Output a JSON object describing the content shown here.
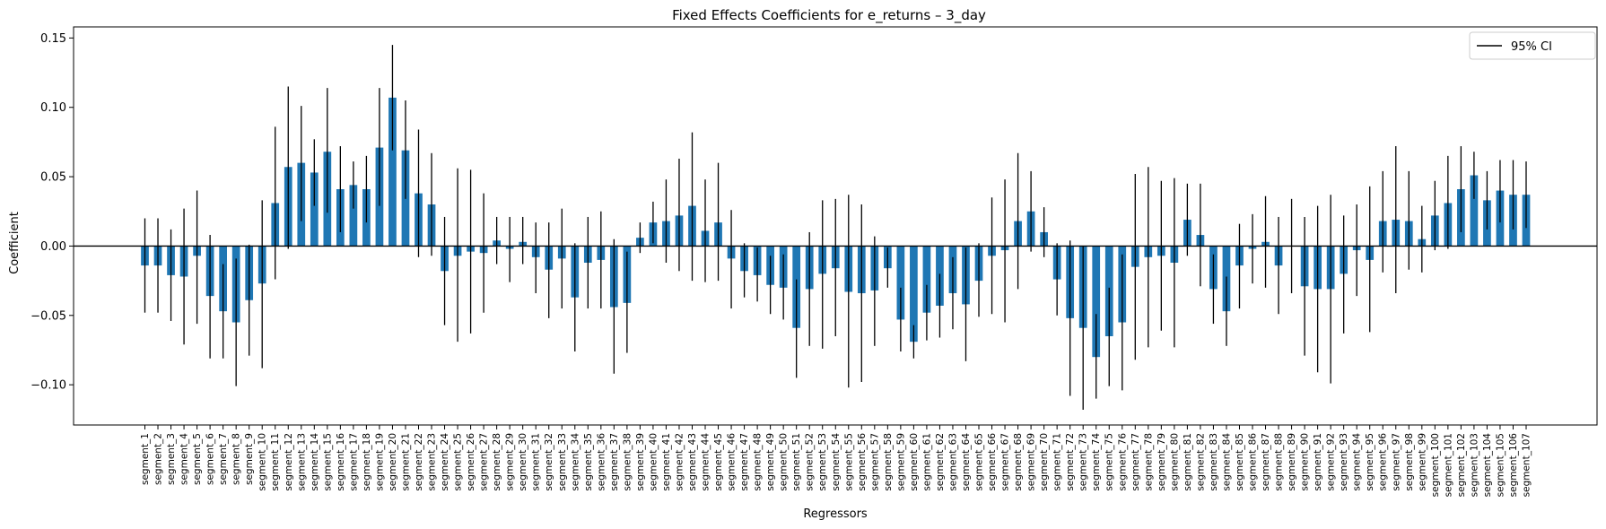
{
  "chart_data": {
    "type": "bar",
    "title": "Fixed Effects Coefficients for e_returns – 3_day",
    "xlabel": "Regressors",
    "ylabel": "Coefficient",
    "ylim": [
      -0.129,
      0.158
    ],
    "yticks": [
      -0.1,
      -0.05,
      0.0,
      0.05,
      0.1,
      0.15
    ],
    "ytick_labels": [
      "−0.10",
      "−0.05",
      "0.00",
      "0.05",
      "0.10",
      "0.15"
    ],
    "legend": {
      "label": "95% CI",
      "placement": "top-right"
    },
    "grid": false,
    "zero_line": true,
    "colors": {
      "bar": "#1f77b4",
      "errorbar": "#000000",
      "zero_line": "#000000"
    },
    "categories": [
      "segment_1",
      "segment_2",
      "segment_3",
      "segment_4",
      "segment_5",
      "segment_6",
      "segment_7",
      "segment_8",
      "segment_9",
      "segment_10",
      "segment_11",
      "segment_12",
      "segment_13",
      "segment_14",
      "segment_15",
      "segment_16",
      "segment_17",
      "segment_18",
      "segment_19",
      "segment_20",
      "segment_21",
      "segment_22",
      "segment_23",
      "segment_24",
      "segment_25",
      "segment_26",
      "segment_27",
      "segment_28",
      "segment_29",
      "segment_30",
      "segment_31",
      "segment_32",
      "segment_33",
      "segment_34",
      "segment_35",
      "segment_36",
      "segment_37",
      "segment_38",
      "segment_39",
      "segment_40",
      "segment_41",
      "segment_42",
      "segment_43",
      "segment_44",
      "segment_45",
      "segment_46",
      "segment_47",
      "segment_48",
      "segment_49",
      "segment_50",
      "segment_51",
      "segment_52",
      "segment_53",
      "segment_54",
      "segment_55",
      "segment_56",
      "segment_57",
      "segment_58",
      "segment_59",
      "segment_60",
      "segment_61",
      "segment_62",
      "segment_63",
      "segment_64",
      "segment_65",
      "segment_66",
      "segment_67",
      "segment_68",
      "segment_69",
      "segment_70",
      "segment_71",
      "segment_72",
      "segment_73",
      "segment_74",
      "segment_75",
      "segment_76",
      "segment_77",
      "segment_78",
      "segment_79",
      "segment_80",
      "segment_81",
      "segment_82",
      "segment_83",
      "segment_84",
      "segment_85",
      "segment_86",
      "segment_87",
      "segment_88",
      "segment_89",
      "segment_90",
      "segment_91",
      "segment_92",
      "segment_93",
      "segment_94",
      "segment_95",
      "segment_96",
      "segment_97",
      "segment_98",
      "segment_99",
      "segment_100",
      "segment_101",
      "segment_102",
      "segment_103",
      "segment_104",
      "segment_105",
      "segment_106",
      "segment_107"
    ],
    "values": [
      -0.014,
      -0.014,
      -0.021,
      -0.022,
      -0.007,
      -0.036,
      -0.047,
      -0.055,
      -0.039,
      -0.027,
      0.031,
      0.057,
      0.06,
      0.053,
      0.068,
      0.041,
      0.044,
      0.041,
      0.071,
      0.107,
      0.069,
      0.038,
      0.03,
      -0.018,
      -0.007,
      -0.004,
      -0.005,
      0.004,
      -0.002,
      0.003,
      -0.008,
      -0.017,
      -0.009,
      -0.037,
      -0.012,
      -0.01,
      -0.044,
      -0.041,
      0.006,
      0.017,
      0.018,
      0.022,
      0.029,
      0.011,
      0.017,
      -0.009,
      -0.018,
      -0.021,
      -0.028,
      -0.03,
      -0.059,
      -0.031,
      -0.02,
      -0.016,
      -0.033,
      -0.034,
      -0.032,
      -0.016,
      -0.053,
      -0.069,
      -0.048,
      -0.043,
      -0.034,
      -0.042,
      -0.025,
      -0.007,
      -0.003,
      0.018,
      0.025,
      0.01,
      -0.024,
      -0.052,
      -0.059,
      -0.08,
      -0.065,
      -0.055,
      -0.015,
      -0.008,
      -0.007,
      -0.012,
      0.019,
      0.008,
      -0.031,
      -0.047,
      -0.014,
      -0.002,
      0.003,
      -0.014,
      0.0,
      -0.029,
      -0.031,
      -0.031,
      -0.02,
      -0.003,
      -0.01,
      0.018,
      0.019,
      0.018,
      0.005,
      0.022,
      0.031,
      0.041,
      0.051,
      0.033,
      0.04,
      0.037,
      0.037
    ],
    "ci_lower": [
      -0.048,
      -0.048,
      -0.054,
      -0.071,
      -0.056,
      -0.081,
      -0.081,
      -0.101,
      -0.079,
      -0.088,
      -0.024,
      -0.002,
      0.018,
      0.029,
      0.024,
      0.01,
      0.027,
      0.017,
      0.029,
      0.069,
      0.034,
      -0.008,
      -0.007,
      -0.057,
      -0.069,
      -0.063,
      -0.048,
      -0.013,
      -0.026,
      -0.013,
      -0.034,
      -0.052,
      -0.045,
      -0.076,
      -0.045,
      -0.045,
      -0.092,
      -0.077,
      -0.005,
      0.002,
      -0.012,
      -0.018,
      -0.025,
      -0.026,
      -0.025,
      -0.045,
      -0.037,
      -0.04,
      -0.049,
      -0.053,
      -0.095,
      -0.072,
      -0.074,
      -0.065,
      -0.102,
      -0.098,
      -0.072,
      -0.03,
      -0.076,
      -0.081,
      -0.068,
      -0.066,
      -0.06,
      -0.083,
      -0.051,
      -0.049,
      -0.055,
      -0.031,
      -0.004,
      -0.008,
      -0.05,
      -0.108,
      -0.118,
      -0.11,
      -0.101,
      -0.104,
      -0.082,
      -0.073,
      -0.061,
      -0.073,
      -0.007,
      -0.029,
      -0.056,
      -0.072,
      -0.045,
      -0.027,
      -0.03,
      -0.049,
      -0.034,
      -0.079,
      -0.091,
      -0.099,
      -0.063,
      -0.036,
      -0.062,
      -0.019,
      -0.034,
      -0.017,
      -0.019,
      -0.003,
      -0.002,
      0.01,
      0.034,
      0.012,
      0.017,
      0.012,
      0.013
    ],
    "ci_upper": [
      0.02,
      0.02,
      0.012,
      0.027,
      0.04,
      0.008,
      -0.013,
      -0.009,
      0.001,
      0.033,
      0.086,
      0.115,
      0.101,
      0.077,
      0.114,
      0.072,
      0.061,
      0.065,
      0.114,
      0.145,
      0.105,
      0.084,
      0.067,
      0.021,
      0.056,
      0.055,
      0.038,
      0.021,
      0.021,
      0.021,
      0.017,
      0.017,
      0.027,
      0.002,
      0.021,
      0.025,
      0.005,
      -0.004,
      0.017,
      0.032,
      0.048,
      0.063,
      0.082,
      0.048,
      0.06,
      0.026,
      0.002,
      -0.001,
      -0.007,
      -0.006,
      -0.024,
      0.01,
      0.033,
      0.034,
      0.037,
      0.03,
      0.007,
      -0.001,
      -0.03,
      -0.057,
      -0.028,
      -0.02,
      -0.008,
      -0.001,
      0.002,
      0.035,
      0.048,
      0.067,
      0.054,
      0.028,
      0.002,
      0.004,
      0.0,
      -0.049,
      -0.03,
      -0.006,
      0.052,
      0.057,
      0.047,
      0.049,
      0.045,
      0.045,
      -0.006,
      -0.022,
      0.016,
      0.023,
      0.036,
      0.021,
      0.034,
      0.021,
      0.029,
      0.037,
      0.022,
      0.03,
      0.043,
      0.054,
      0.072,
      0.054,
      0.029,
      0.047,
      0.065,
      0.072,
      0.068,
      0.054,
      0.062,
      0.062,
      0.061
    ]
  }
}
